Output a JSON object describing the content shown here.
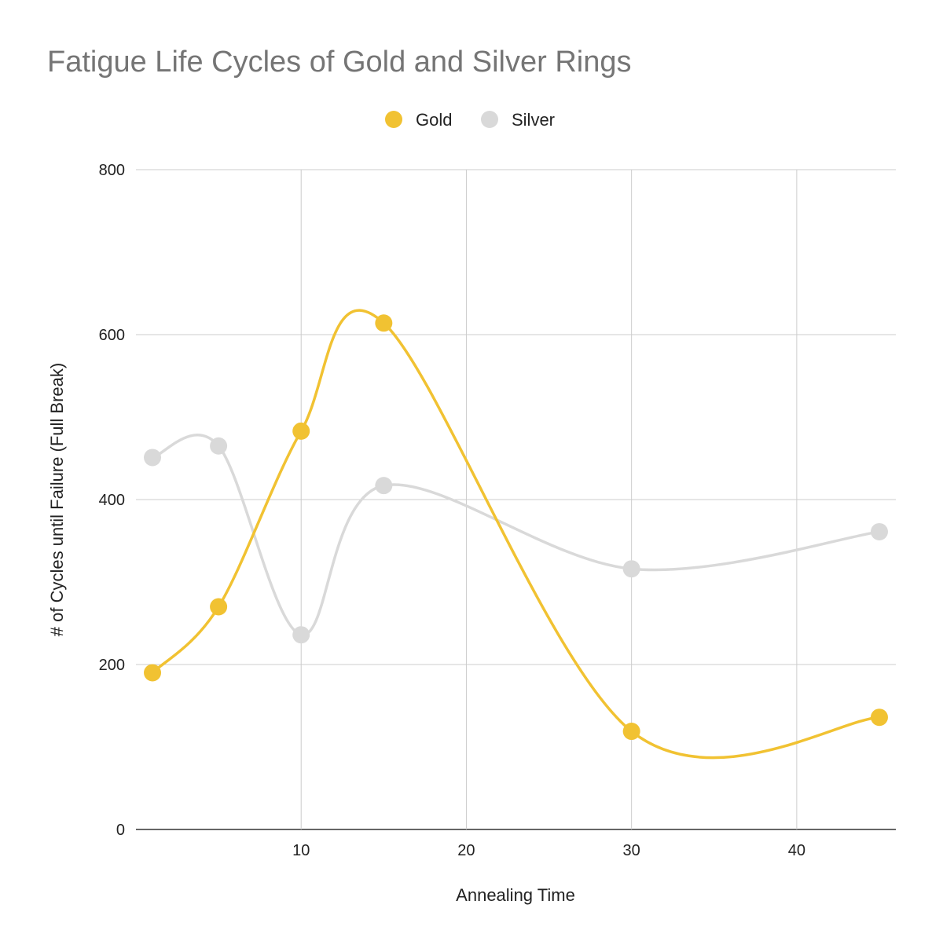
{
  "chart_data": {
    "type": "line",
    "title": "Fatigue Life Cycles of Gold and Silver Rings",
    "xlabel": "Annealing Time",
    "ylabel": "# of Cycles until Failure (Full Break)",
    "xlim": [
      0,
      46
    ],
    "ylim": [
      0,
      800
    ],
    "xticks": [
      10,
      20,
      30,
      40
    ],
    "yticks": [
      0,
      200,
      400,
      600,
      800
    ],
    "grid": true,
    "smooth": true,
    "legend_position": "top-center",
    "x": [
      1,
      5,
      10,
      15,
      30,
      45
    ],
    "series": [
      {
        "name": "Gold",
        "color": "#f1c232",
        "values": [
          190,
          270,
          483,
          614,
          119,
          136
        ]
      },
      {
        "name": "Silver",
        "color": "#d9d9d9",
        "values": [
          451,
          465,
          236,
          417,
          316,
          361
        ]
      }
    ]
  }
}
